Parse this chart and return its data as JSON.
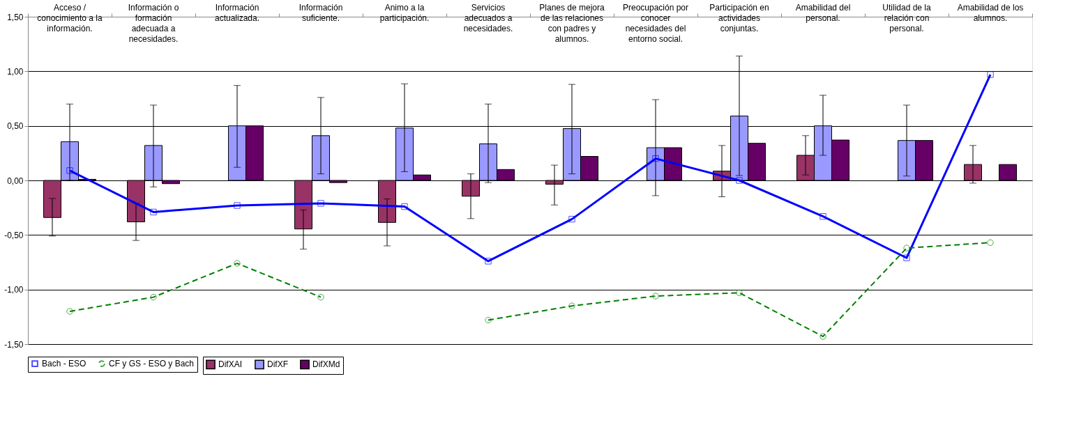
{
  "chart_data": {
    "type": "bar",
    "categories": [
      "Acceso / conocimiento a la información.",
      "Información o formación adecuada a necesidades.",
      "Información actualizada.",
      "Información suficiente.",
      "Animo a la participación.",
      "Servicios adecuados a necesidades.",
      "Planes de mejora de las relaciones con padres y alumnos.",
      "Preocupación por conocer necesidades del entorno social.",
      "Participación en actividades conjuntas.",
      "Amabilidad del personal.",
      "Utilidad de la relación con personal.",
      "Amabilidad de los alumnos."
    ],
    "series": [
      {
        "name": "DifXAI",
        "color": "#993366",
        "values": [
          -0.34,
          -0.38,
          null,
          -0.445,
          -0.385,
          -0.145,
          -0.035,
          null,
          0.085,
          0.23,
          null,
          0.146
        ],
        "errors": [
          [
            -0.51,
            -0.165
          ],
          [
            -0.55,
            -0.21
          ],
          null,
          [
            -0.63,
            -0.27
          ],
          [
            -0.6,
            -0.17
          ],
          [
            -0.35,
            0.06
          ],
          [
            -0.225,
            0.14
          ],
          null,
          [
            -0.15,
            0.32
          ],
          [
            0.05,
            0.41
          ],
          null,
          [
            -0.025,
            0.32
          ]
        ]
      },
      {
        "name": "DifXF",
        "color": "#9999ff",
        "values": [
          0.355,
          0.32,
          0.5,
          0.41,
          0.48,
          0.335,
          0.475,
          0.3,
          0.59,
          0.5,
          0.366,
          null
        ],
        "errors": [
          [
            0.0,
            0.7
          ],
          [
            -0.06,
            0.69
          ],
          [
            0.12,
            0.87
          ],
          [
            0.06,
            0.76
          ],
          [
            0.08,
            0.885
          ],
          [
            -0.02,
            0.7
          ],
          [
            0.06,
            0.88
          ],
          [
            -0.14,
            0.74
          ],
          [
            0.045,
            1.14
          ],
          [
            0.23,
            0.78
          ],
          [
            0.04,
            0.69
          ],
          null
        ]
      },
      {
        "name": "DifXMd",
        "color": "#660066",
        "values": [
          0.01,
          -0.03,
          0.5,
          -0.02,
          0.05,
          0.1,
          0.22,
          0.3,
          0.34,
          0.37,
          0.366,
          0.146
        ]
      },
      {
        "name": "Bach - ESO",
        "type": "line",
        "color": "#0000ff",
        "marker": "square",
        "line_style": "solid",
        "values": [
          0.09,
          -0.29,
          -0.23,
          -0.21,
          -0.24,
          -0.74,
          -0.355,
          0.2,
          0.0,
          -0.33,
          -0.71,
          0.97
        ]
      },
      {
        "name": "CF y GS - ESO y Bach",
        "type": "line",
        "color": "#008000",
        "marker": "circle",
        "line_style": "dashed",
        "values": [
          -1.2,
          -1.07,
          -0.76,
          -1.07,
          null,
          -1.28,
          -1.15,
          -1.06,
          -1.03,
          -1.43,
          -0.62,
          -0.57
        ]
      }
    ],
    "ylim": [
      -1.5,
      1.5
    ],
    "yticks": [
      {
        "value": -1.5,
        "label": "-1,50"
      },
      {
        "value": -1.0,
        "label": "-1,00"
      },
      {
        "value": -0.5,
        "label": "-0,50"
      },
      {
        "value": 0.0,
        "label": "0,00"
      },
      {
        "value": 0.5,
        "label": "0,50"
      },
      {
        "value": 1.0,
        "label": "1,00"
      },
      {
        "value": 1.5,
        "label": "1,50"
      }
    ],
    "grid": "y",
    "legend": "bottom"
  }
}
